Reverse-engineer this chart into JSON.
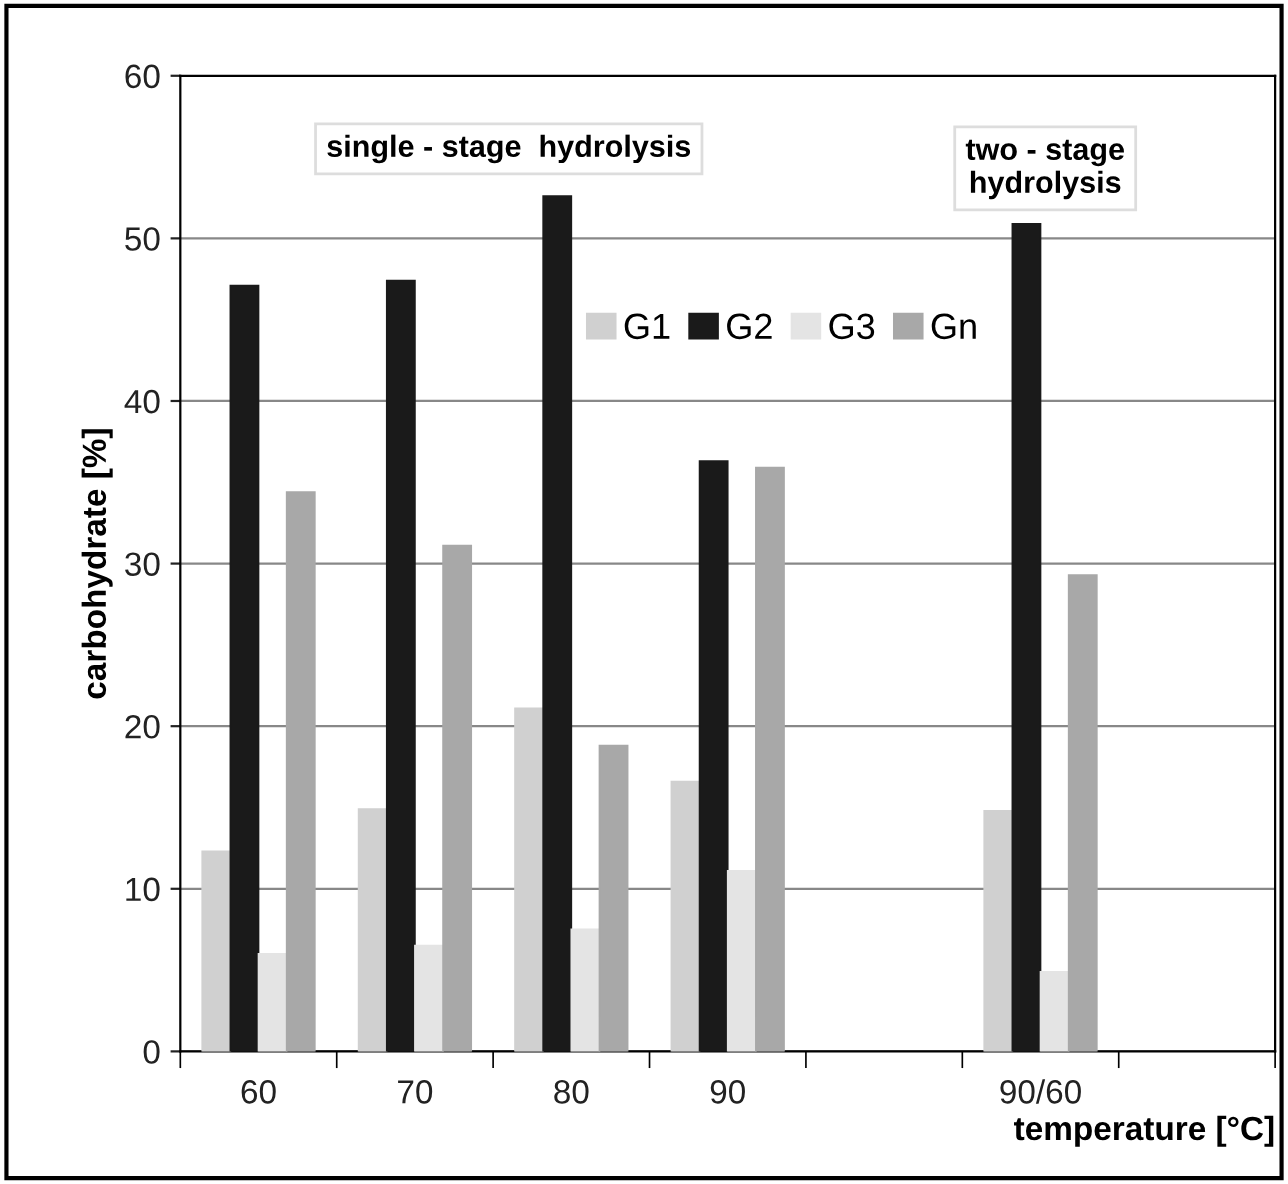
{
  "chart_data": {
    "type": "bar",
    "categories": [
      "60",
      "70",
      "80",
      "90",
      null,
      "90/60",
      null
    ],
    "series": [
      {
        "name": "G1",
        "color": "#d0d0d0",
        "values": [
          12.3,
          14.9,
          21.1,
          16.6,
          null,
          14.8,
          null
        ]
      },
      {
        "name": "G2",
        "color": "#1a1a1a",
        "values": [
          47.1,
          47.4,
          52.6,
          36.3,
          null,
          50.9,
          null
        ]
      },
      {
        "name": "G3",
        "color": "#e4e4e4",
        "values": [
          6.0,
          6.5,
          7.5,
          11.1,
          null,
          4.9,
          null
        ]
      },
      {
        "name": "Gn",
        "color": "#a8a8a8",
        "values": [
          34.4,
          31.1,
          18.8,
          35.9,
          null,
          29.3,
          null
        ]
      }
    ],
    "xlabel": "temperature [°C]",
    "ylabel": "carbohydrate [%]",
    "ylim": [
      0,
      60
    ],
    "yticks": [
      0,
      10,
      20,
      30,
      40,
      50,
      60
    ],
    "grid": "y",
    "legend": "top",
    "annotations": [
      "single - stage  hydrolysis",
      "two - stage\nhydrolysis"
    ]
  }
}
